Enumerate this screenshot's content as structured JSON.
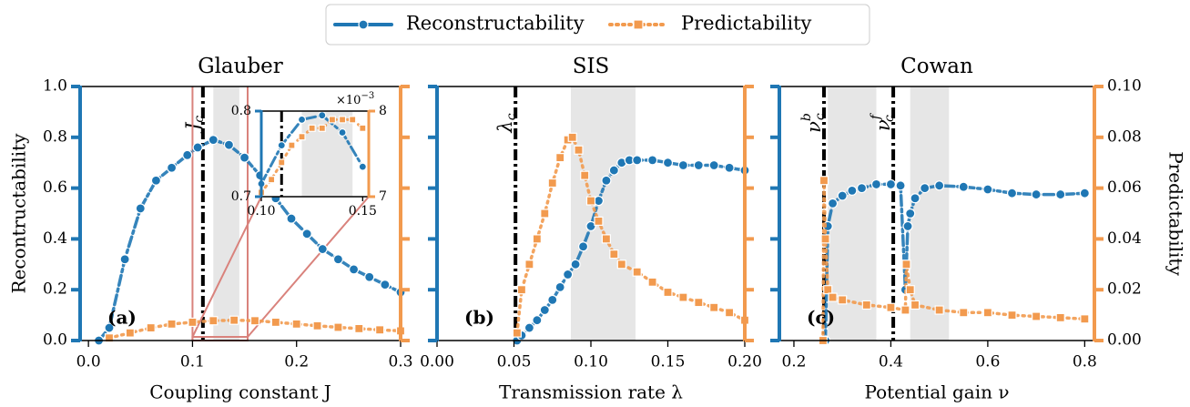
{
  "chart_data": [
    {
      "type": "line",
      "title": "Glauber",
      "label": "(a)",
      "xlabel": "Coupling constant J",
      "ylabel": "Recontructability",
      "legend": "upper center",
      "xlim": [
        -0.008,
        0.3
      ],
      "xticks": [
        {
          "value": 0,
          "label": "0.0"
        },
        0.1,
        0.2,
        0.3
      ],
      "ylim": [
        0,
        1
      ],
      "yticks": [
        {
          "value": 0,
          "label": "0.0"
        },
        0.2,
        0.4,
        0.6,
        0.8,
        {
          "value": 1,
          "label": "1.0"
        }
      ],
      "ytick_labels": true,
      "y2lim": [
        0,
        0.1
      ],
      "y2ticks": [
        0,
        0.02,
        0.04,
        0.06,
        0.08,
        0.1
      ],
      "y2tick_labels": false,
      "shade_color": "#e6e6e6",
      "shaded": [
        [
          0.12,
          0.145
        ]
      ],
      "critical": [
        {
          "x": 0.11,
          "symbol": "J",
          "sub": "c"
        }
      ],
      "series": [
        {
          "name": "Reconstructability",
          "color": "#1f77b4",
          "linestyle": "dashdot",
          "marker": "circle",
          "x": [
            0.01,
            0.02,
            0.035,
            0.05,
            0.065,
            0.08,
            0.095,
            0.105,
            0.12,
            0.135,
            0.15,
            0.165,
            0.18,
            0.195,
            0.21,
            0.225,
            0.24,
            0.255,
            0.27,
            0.285,
            0.3
          ],
          "values": [
            0,
            0.05,
            0.32,
            0.52,
            0.63,
            0.68,
            0.73,
            0.76,
            0.79,
            0.77,
            0.72,
            0.65,
            0.56,
            0.48,
            0.42,
            0.36,
            0.32,
            0.28,
            0.25,
            0.22,
            0.19
          ]
        },
        {
          "name": "Predictability",
          "color": "#f29a4e",
          "linestyle": "dotted",
          "marker": "square",
          "axis": "y2",
          "x": [
            0.02,
            0.04,
            0.06,
            0.08,
            0.1,
            0.12,
            0.14,
            0.16,
            0.18,
            0.2,
            0.22,
            0.24,
            0.26,
            0.28,
            0.3
          ],
          "values": [
            0.001,
            0.003,
            0.005,
            0.0065,
            0.0072,
            0.0078,
            0.008,
            0.0078,
            0.0072,
            0.0065,
            0.0058,
            0.0052,
            0.0047,
            0.0042,
            0.0038
          ]
        }
      ]
    },
    {
      "type": "line",
      "title": "SIS",
      "label": "(b)",
      "xlabel": "Transmission rate λ",
      "xlim": [
        0,
        0.2
      ],
      "xticks": [
        {
          "value": 0,
          "label": "0.00"
        },
        0.05,
        {
          "value": 0.1,
          "label": "0.10"
        },
        0.15,
        {
          "value": 0.2,
          "label": "0.20"
        }
      ],
      "ylim": [
        0,
        1
      ],
      "yticks": [
        0,
        0.2,
        0.4,
        0.6,
        0.8,
        1
      ],
      "ytick_labels": false,
      "y2lim": [
        0,
        0.1
      ],
      "y2ticks": [
        0,
        0.02,
        0.04,
        0.06,
        0.08,
        0.1
      ],
      "y2tick_labels": false,
      "shade_color": "#e6e6e6",
      "shaded": [
        [
          0.087,
          0.129
        ]
      ],
      "critical": [
        {
          "x": 0.051,
          "symbol": "λ",
          "sub": "c"
        }
      ],
      "series": [
        {
          "color": "#1f77b4",
          "linestyle": "dashdot",
          "marker": "circle",
          "x": [
            0.052,
            0.055,
            0.06,
            0.065,
            0.07,
            0.075,
            0.08,
            0.085,
            0.09,
            0.095,
            0.1,
            0.105,
            0.11,
            0.115,
            0.12,
            0.125,
            0.13,
            0.14,
            0.15,
            0.16,
            0.17,
            0.18,
            0.19,
            0.2
          ],
          "values": [
            0,
            0.02,
            0.05,
            0.08,
            0.12,
            0.16,
            0.21,
            0.26,
            0.3,
            0.37,
            0.45,
            0.55,
            0.63,
            0.67,
            0.7,
            0.71,
            0.71,
            0.71,
            0.7,
            0.69,
            0.69,
            0.69,
            0.68,
            0.67
          ]
        },
        {
          "color": "#f29a4e",
          "linestyle": "dotted",
          "marker": "square",
          "axis": "y2",
          "x": [
            0.052,
            0.055,
            0.06,
            0.065,
            0.07,
            0.075,
            0.08,
            0.085,
            0.088,
            0.092,
            0.096,
            0.1,
            0.105,
            0.11,
            0.115,
            0.12,
            0.13,
            0.14,
            0.15,
            0.16,
            0.17,
            0.18,
            0.19,
            0.2
          ],
          "values": [
            0.003,
            0.02,
            0.03,
            0.04,
            0.05,
            0.062,
            0.072,
            0.079,
            0.08,
            0.075,
            0.065,
            0.055,
            0.047,
            0.04,
            0.034,
            0.03,
            0.027,
            0.023,
            0.019,
            0.017,
            0.015,
            0.013,
            0.011,
            0.008
          ]
        }
      ]
    },
    {
      "type": "line",
      "title": "Cowan",
      "label": "(c)",
      "xlabel": "Potential gain ν",
      "y2label": "Predictability",
      "xlim": [
        0.17,
        0.82
      ],
      "xticks": [
        0.2,
        0.4,
        0.6,
        0.8
      ],
      "ylim": [
        0,
        1
      ],
      "yticks": [
        0,
        0.2,
        0.4,
        0.6,
        0.8,
        1
      ],
      "ytick_labels": false,
      "y2lim": [
        0,
        0.1
      ],
      "y2ticks": [
        {
          "value": 0,
          "label": "0.00"
        },
        0.02,
        0.04,
        0.06,
        0.08,
        {
          "value": 0.1,
          "label": "0.10"
        }
      ],
      "y2tick_labels": true,
      "shade_color": "#e6e6e6",
      "shaded": [
        [
          0.27,
          0.37
        ],
        [
          0.44,
          0.52
        ]
      ],
      "critical": [
        {
          "x": 0.262,
          "symbol": "ν",
          "sub": "c",
          "sup": "b"
        },
        {
          "x": 0.405,
          "symbol": "ν",
          "sub": "c",
          "sup": "f"
        }
      ],
      "series": [
        {
          "color": "#1f77b4",
          "linestyle": "dashdot",
          "marker": "circle",
          "x": [
            0.265,
            0.27,
            0.28,
            0.3,
            0.32,
            0.34,
            0.37,
            0.4,
            0.42,
            0.43,
            0.435,
            0.44,
            0.45,
            0.47,
            0.5,
            0.55,
            0.6,
            0.65,
            0.7,
            0.75,
            0.8
          ],
          "values": [
            0,
            0.45,
            0.54,
            0.57,
            0.59,
            0.6,
            0.615,
            0.615,
            0.61,
            0.2,
            0.45,
            0.5,
            0.56,
            0.6,
            0.61,
            0.605,
            0.595,
            0.58,
            0.575,
            0.575,
            0.58
          ]
        },
        {
          "color": "#f29a4e",
          "linestyle": "dotted",
          "marker": "square",
          "axis": "y2",
          "x": [
            0.26,
            0.262,
            0.265,
            0.27,
            0.28,
            0.3,
            0.35,
            0.4,
            0.43,
            0.432,
            0.44,
            0.45,
            0.5,
            0.55,
            0.6,
            0.65,
            0.7,
            0.75,
            0.8
          ],
          "values": [
            0,
            0.063,
            0.04,
            0.02,
            0.017,
            0.016,
            0.014,
            0.013,
            0.012,
            0.03,
            0.02,
            0.014,
            0.012,
            0.011,
            0.011,
            0.01,
            0.0095,
            0.009,
            0.0085
          ]
        }
      ]
    },
    {
      "type": "line",
      "multiplier": {
        "text": "×10",
        "sup": "−3"
      },
      "xlim": [
        0.1,
        0.153
      ],
      "xticks": [
        {
          "value": 0.1,
          "label": "0.10"
        },
        0.15
      ],
      "ylim": [
        0.7,
        0.8
      ],
      "yticks": [
        0.7,
        0.8
      ],
      "ytick_labels": true,
      "y2lim": [
        0.007,
        0.008
      ],
      "y2ticks": [
        {
          "value": 0.007,
          "label": "7"
        },
        {
          "value": 0.008,
          "label": "8"
        }
      ],
      "y2tick_labels": true,
      "shade_color": "#e6e6e6",
      "shaded": [
        [
          0.12,
          0.145
        ]
      ],
      "critical": [
        {
          "x": 0.11
        }
      ],
      "series": [
        {
          "color": "#1f77b4",
          "linestyle": "dashdot",
          "marker": "circle",
          "x": [
            0.1,
            0.11,
            0.12,
            0.13,
            0.14,
            0.15
          ],
          "values": [
            0.715,
            0.76,
            0.79,
            0.795,
            0.775,
            0.735
          ]
        },
        {
          "color": "#f29a4e",
          "linestyle": "dotted",
          "marker": "square",
          "axis": "y2",
          "x": [
            0.1,
            0.105,
            0.11,
            0.115,
            0.12,
            0.125,
            0.13,
            0.135,
            0.14,
            0.145,
            0.15
          ],
          "values": [
            0.00705,
            0.0072,
            0.0074,
            0.0076,
            0.0077,
            0.0078,
            0.0078,
            0.0079,
            0.0079,
            0.0079,
            0.0078
          ]
        }
      ]
    }
  ]
}
